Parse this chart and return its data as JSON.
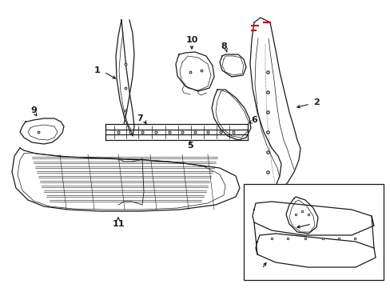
{
  "bg_color": "#ffffff",
  "line_color": "#1a1a1a",
  "red_color": "#cc0000",
  "fig_w": 4.89,
  "fig_h": 3.6,
  "dpi": 100
}
